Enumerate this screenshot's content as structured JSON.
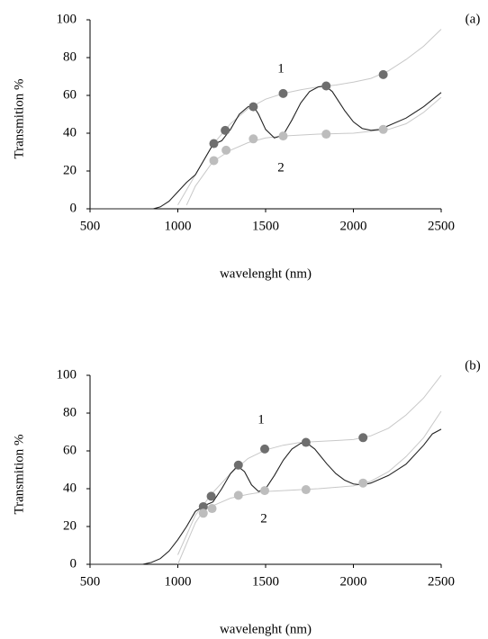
{
  "chart_data": [
    {
      "type": "line",
      "panel_label": "(a)",
      "x_label": "wavelenght (nm)",
      "y_label": "Transmition %",
      "xlim": [
        500,
        2500
      ],
      "xticks": [
        500,
        1000,
        1500,
        2000,
        2500
      ],
      "ylim": [
        0,
        100
      ],
      "yticks": [
        0,
        20,
        40,
        60,
        80,
        100
      ],
      "annotations": [
        "1",
        "2"
      ],
      "series": [
        {
          "mode": "line",
          "color": "#c8c8c8",
          "x": [
            1000,
            1100,
            1200,
            1300,
            1400,
            1500,
            1600,
            1700,
            1800,
            1900,
            2000,
            2100,
            2200,
            2300,
            2400,
            2500
          ],
          "values": [
            2,
            18,
            34,
            45,
            53,
            58,
            61,
            63,
            64.5,
            65.5,
            67,
            69,
            73,
            79,
            86,
            95
          ]
        },
        {
          "mode": "line",
          "color": "#c8c8c8",
          "x": [
            1050,
            1100,
            1200,
            1300,
            1400,
            1500,
            1600,
            1800,
            2000,
            2200,
            2300,
            2400,
            2500
          ],
          "values": [
            2,
            12,
            25,
            31,
            35,
            37.5,
            38.5,
            39.5,
            40,
            42,
            45,
            51,
            59
          ]
        },
        {
          "mode": "line",
          "color": "#222222",
          "x": [
            500,
            860,
            900,
            950,
            1000,
            1050,
            1100,
            1150,
            1200,
            1250,
            1300,
            1350,
            1400,
            1430,
            1460,
            1500,
            1550,
            1600,
            1650,
            1700,
            1750,
            1800,
            1840,
            1880,
            1950,
            2000,
            2050,
            2100,
            2150,
            2200,
            2300,
            2400,
            2500
          ],
          "values": [
            0,
            0,
            1,
            4,
            9,
            14,
            18,
            26,
            34,
            36,
            42,
            50,
            54,
            54.5,
            50,
            42,
            37.5,
            39,
            47,
            56,
            62,
            64.5,
            65,
            62,
            52,
            46,
            42.5,
            41.5,
            42,
            44,
            48,
            54,
            61.5
          ]
        },
        {
          "mode": "markers",
          "color": "#6e6e6e",
          "x": [
            1205,
            1270,
            1430,
            1600,
            1845,
            2170
          ],
          "values": [
            34.5,
            41.5,
            54,
            61,
            65,
            71
          ]
        },
        {
          "mode": "markers",
          "color": "#bdbdbd",
          "x": [
            1205,
            1275,
            1430,
            1600,
            1845,
            2170
          ],
          "values": [
            25.5,
            31,
            37,
            38.5,
            39.5,
            42
          ]
        }
      ]
    },
    {
      "type": "line",
      "panel_label": "(b)",
      "x_label": "wavelenght (nm)",
      "y_label": "Transmition %",
      "xlim": [
        500,
        2500
      ],
      "xticks": [
        500,
        1000,
        1500,
        2000,
        2500
      ],
      "ylim": [
        0,
        100
      ],
      "yticks": [
        0,
        20,
        40,
        60,
        80,
        100
      ],
      "annotations": [
        "1",
        "2"
      ],
      "series": [
        {
          "mode": "line",
          "color": "#c8c8c8",
          "x": [
            1000,
            1100,
            1200,
            1300,
            1400,
            1500,
            1600,
            1700,
            1800,
            1900,
            2000,
            2100,
            2200,
            2300,
            2400,
            2500
          ],
          "values": [
            5,
            26,
            38,
            48,
            56,
            60.5,
            63,
            64.5,
            65,
            65.5,
            66,
            68,
            72,
            79,
            88,
            100
          ]
        },
        {
          "mode": "line",
          "color": "#c8c8c8",
          "x": [
            1000,
            1100,
            1150,
            1200,
            1300,
            1400,
            1500,
            1600,
            1800,
            2000,
            2100,
            2200,
            2300,
            2400,
            2500
          ],
          "values": [
            0,
            22,
            29,
            31,
            35,
            37,
            38.5,
            39,
            40,
            41.5,
            44,
            49,
            57,
            67,
            81
          ]
        },
        {
          "mode": "line",
          "color": "#222222",
          "x": [
            500,
            800,
            850,
            900,
            950,
            1000,
            1050,
            1100,
            1150,
            1200,
            1250,
            1300,
            1340,
            1380,
            1420,
            1460,
            1500,
            1550,
            1600,
            1650,
            1700,
            1730,
            1780,
            1850,
            1900,
            1950,
            2000,
            2050,
            2100,
            2200,
            2300,
            2400,
            2450,
            2500
          ],
          "values": [
            0,
            0,
            1,
            3,
            7,
            13,
            20,
            28,
            31,
            33,
            40,
            48,
            52,
            49,
            42,
            38.5,
            40,
            47,
            55,
            61,
            64,
            64.5,
            61,
            53,
            48,
            44.5,
            42.5,
            42,
            43,
            47,
            53,
            63,
            69,
            71.5
          ]
        },
        {
          "mode": "markers",
          "color": "#6e6e6e",
          "x": [
            1145,
            1190,
            1345,
            1495,
            1730,
            2055
          ],
          "values": [
            30.5,
            36,
            52.5,
            61,
            64.5,
            67
          ]
        },
        {
          "mode": "markers",
          "color": "#bdbdbd",
          "x": [
            1145,
            1195,
            1345,
            1495,
            1730,
            2055
          ],
          "values": [
            27,
            29.5,
            36.5,
            39,
            39.5,
            43
          ]
        }
      ]
    }
  ]
}
